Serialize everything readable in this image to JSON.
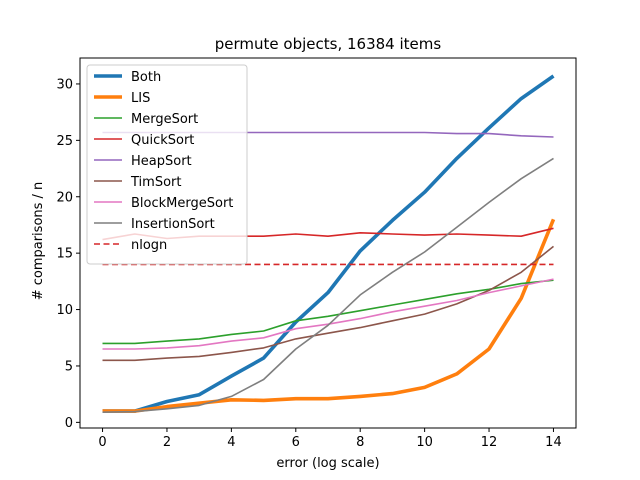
{
  "chart_data": {
    "type": "line",
    "title": "permute objects, 16384 items",
    "xlabel": "error (log scale)",
    "ylabel": "# comparisons / n",
    "xlim": [
      -0.7,
      14.7
    ],
    "ylim": [
      -0.5,
      32.3
    ],
    "xticks": [
      "0",
      "2",
      "4",
      "6",
      "8",
      "10",
      "12",
      "14"
    ],
    "yticks": [
      "0",
      "5",
      "10",
      "15",
      "20",
      "25",
      "30"
    ],
    "legend_position": "upper-left",
    "x": [
      0,
      1,
      2,
      3,
      4,
      5,
      6,
      7,
      8,
      9,
      10,
      11,
      12,
      13,
      14
    ],
    "series": [
      {
        "name": "Both",
        "color": "#1f77b4",
        "style": "thick",
        "values": [
          1.0,
          1.0,
          1.85,
          2.45,
          4.1,
          5.7,
          8.9,
          11.5,
          15.2,
          17.9,
          20.4,
          23.4,
          26.1,
          28.7,
          30.7
        ]
      },
      {
        "name": "LIS",
        "color": "#ff7f0e",
        "style": "thick",
        "values": [
          1.0,
          1.0,
          1.4,
          1.7,
          2.0,
          1.95,
          2.1,
          2.1,
          2.3,
          2.55,
          3.1,
          4.3,
          6.5,
          11.0,
          18.0
        ]
      },
      {
        "name": "MergeSort",
        "color": "#2ca02c",
        "style": "solid",
        "values": [
          7.0,
          7.0,
          7.2,
          7.4,
          7.8,
          8.1,
          9.0,
          9.4,
          9.9,
          10.4,
          10.9,
          11.4,
          11.8,
          12.3,
          12.6
        ]
      },
      {
        "name": "QuickSort",
        "color": "#d62728",
        "style": "solid",
        "values": [
          16.2,
          16.7,
          16.3,
          16.5,
          16.5,
          16.5,
          16.7,
          16.5,
          16.8,
          16.7,
          16.6,
          16.7,
          16.6,
          16.5,
          17.2
        ]
      },
      {
        "name": "HeapSort",
        "color": "#9467bd",
        "style": "solid",
        "values": [
          25.7,
          25.7,
          25.7,
          25.7,
          25.7,
          25.7,
          25.7,
          25.7,
          25.7,
          25.7,
          25.7,
          25.6,
          25.6,
          25.4,
          25.3
        ]
      },
      {
        "name": "TimSort",
        "color": "#8c564b",
        "style": "solid",
        "values": [
          5.5,
          5.5,
          5.7,
          5.85,
          6.2,
          6.6,
          7.4,
          7.9,
          8.4,
          9.0,
          9.6,
          10.5,
          11.7,
          13.3,
          15.6
        ]
      },
      {
        "name": "BlockMergeSort",
        "color": "#e377c2",
        "style": "solid",
        "values": [
          6.5,
          6.5,
          6.6,
          6.8,
          7.2,
          7.5,
          8.3,
          8.7,
          9.2,
          9.8,
          10.3,
          10.8,
          11.5,
          12.1,
          12.7
        ]
      },
      {
        "name": "InsertionSort",
        "color": "#7f7f7f",
        "style": "solid",
        "values": [
          0.9,
          0.95,
          1.2,
          1.5,
          2.3,
          3.8,
          6.5,
          8.6,
          11.3,
          13.3,
          15.1,
          17.3,
          19.5,
          21.6,
          23.4
        ]
      },
      {
        "name": "nlogn",
        "color": "#d62728",
        "style": "dashed",
        "values": [
          14.0,
          14.0,
          14.0,
          14.0,
          14.0,
          14.0,
          14.0,
          14.0,
          14.0,
          14.0,
          14.0,
          14.0,
          14.0,
          14.0,
          14.0
        ]
      }
    ]
  }
}
